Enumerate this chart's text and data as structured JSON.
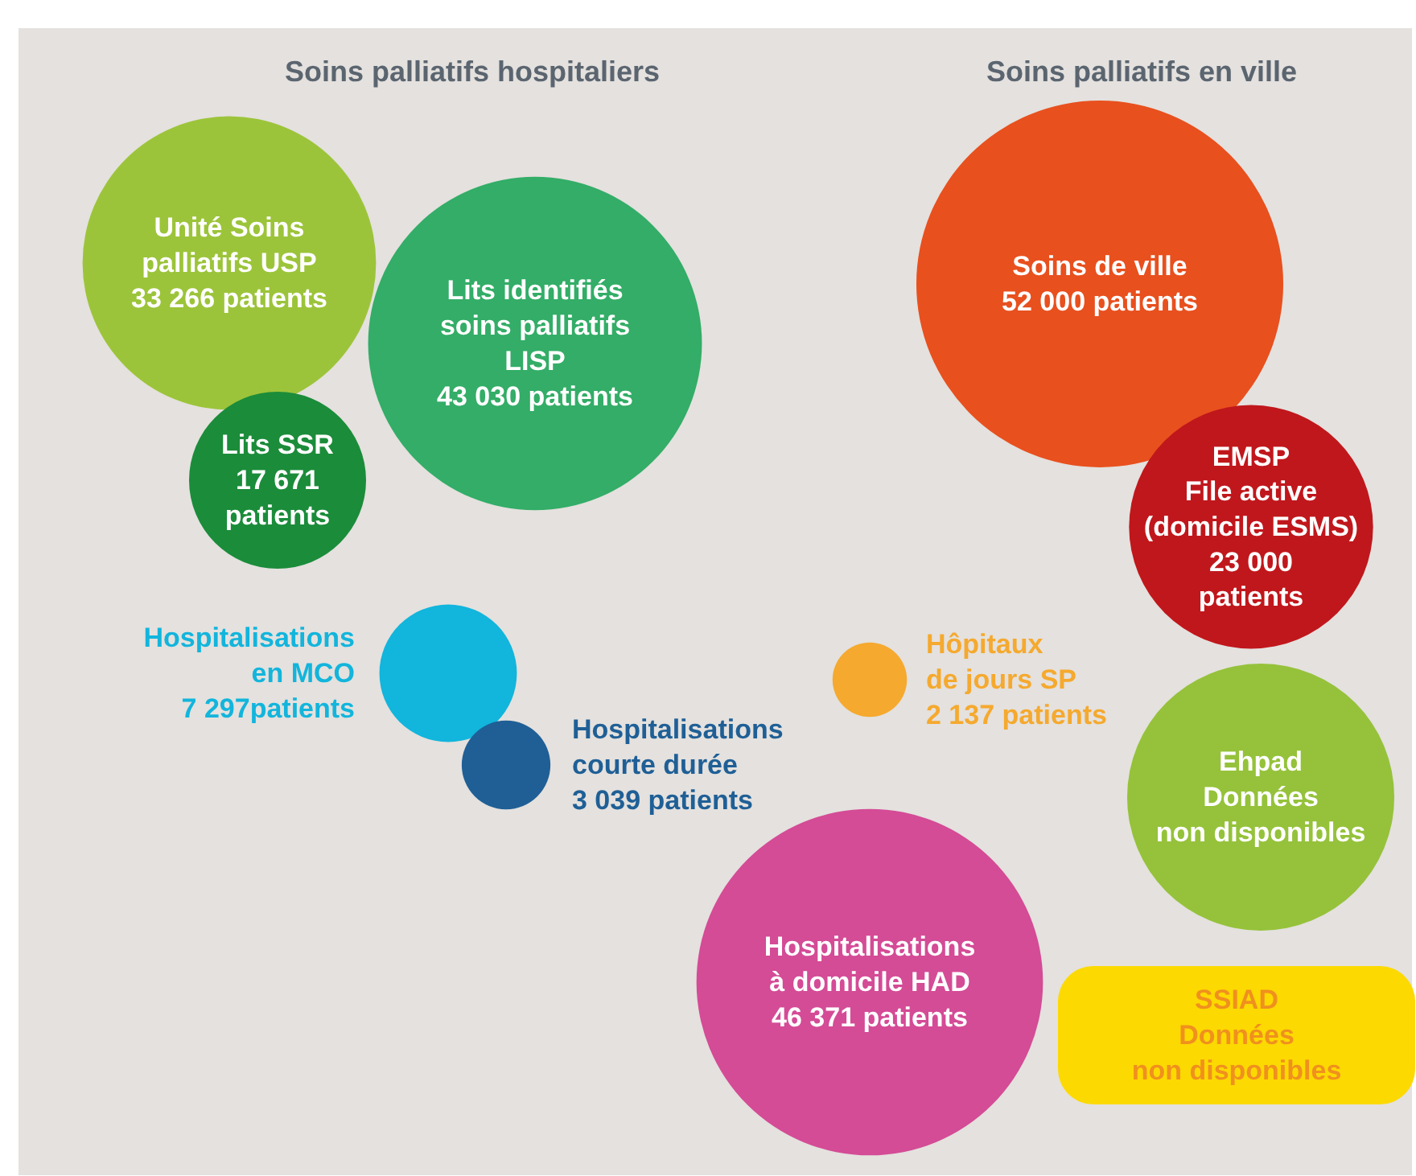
{
  "chart_data": {
    "type": "other",
    "annotations": [
      "Soins palliatifs hospitaliers",
      "Soins palliatifs en ville"
    ],
    "categories": [
      "Unité Soins\npalliatifs USP",
      "Lits identifiés\nsoins palliatifs\nLISP",
      "Lits SSR",
      "Hospitalisations\nen MCO",
      "Hospitalisations\ncourte durée",
      "Soins de ville",
      "EMSP\nFile active\n(domicile ESMS)",
      "Hospitalisations\nà domicile HAD",
      "Hôpitaux\nde jours SP",
      "Ehpad",
      "SSIAD"
    ],
    "values": [
      33266,
      43030,
      17671,
      7297,
      3039,
      52000,
      23000,
      46371,
      2137,
      null,
      null
    ],
    "value_labels": [
      "33 266 patients",
      "43 030 patients",
      "17 671\npatients",
      "7 297patients",
      "3 039 patients",
      "52 000 patients",
      "23 000\npatients",
      "46 371 patients",
      "2 137 patients",
      "Données\nnon disponibles",
      "Données\nnon disponibles"
    ],
    "colors": [
      "#9cc43a",
      "#33ad67",
      "#1b8c3a",
      "#12b5dc",
      "#1f5f96",
      "#e8501e",
      "#c0171c",
      "#d44b96",
      "#f5a92e",
      "#95c23a",
      "#fcd900"
    ]
  }
}
